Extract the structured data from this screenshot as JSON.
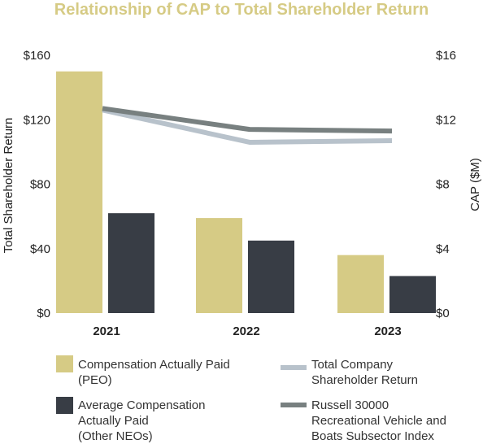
{
  "chart_data": {
    "type": "bar",
    "title": "Relationship of CAP to Total Shareholder Return",
    "categories": [
      "2021",
      "2022",
      "2023"
    ],
    "y_left": {
      "label": "Total Shareholder Return",
      "ticks": [
        "$0",
        "$40",
        "$80",
        "$120",
        "$160"
      ],
      "lim": [
        0,
        160
      ]
    },
    "y_right": {
      "label": "CAP ($M)",
      "ticks": [
        "$0",
        "$4",
        "$8",
        "$12",
        "$16"
      ],
      "lim": [
        0,
        16
      ]
    },
    "bar_series": [
      {
        "name": "Compensation Actually Paid (PEO)",
        "legend_lines": [
          "Compensation Actually Paid",
          "(PEO)"
        ],
        "axis": "right",
        "color": "#d6cb85",
        "values": [
          15.0,
          5.9,
          3.6
        ]
      },
      {
        "name": "Average Compensation Actually Paid (Other NEOs)",
        "legend_lines": [
          "Average Compensation",
          "Actually Paid",
          "(Other NEOs)"
        ],
        "axis": "right",
        "color": "#383d45",
        "values": [
          6.2,
          4.5,
          2.3
        ]
      }
    ],
    "line_series": [
      {
        "name": "Total Company Shareholder Return",
        "legend_lines": [
          "Total Company",
          "Shareholder Return"
        ],
        "axis": "left",
        "color": "#b8c2cb",
        "values": [
          126,
          106,
          107
        ]
      },
      {
        "name": "Russell 30000 Recreational Vehicle and Boats Subsector Index",
        "legend_lines": [
          "Russell 30000",
          "Recreational Vehicle and",
          "Boats Subsector Index"
        ],
        "axis": "left",
        "color": "#788080",
        "values": [
          127,
          114,
          113
        ]
      }
    ],
    "grid": false,
    "legend_position": "bottom"
  }
}
